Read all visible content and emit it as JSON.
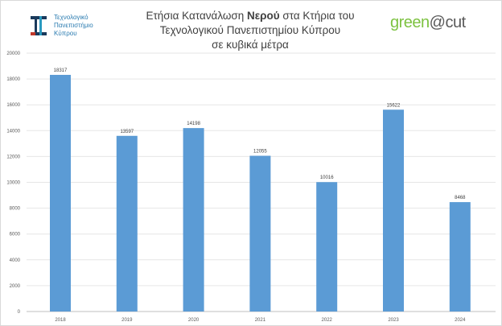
{
  "logos": {
    "left_text": [
      "Τεχνολογικό",
      "Πανεπιστήμιο",
      "Κύπρου"
    ],
    "right_green": "green",
    "right_gray": "@cut"
  },
  "chart_data": {
    "type": "bar",
    "title_lines": [
      "Ετήσια Κατανάλωση ",
      "Νερού",
      " στα Κτήρια του",
      "Τεχνολογικού Πανεπιστημίου Κύπρου",
      "σε κυβικά μέτρα"
    ],
    "categories": [
      "2018",
      "2019",
      "2020",
      "2021",
      "2022",
      "2023",
      "2024"
    ],
    "values": [
      18317,
      13597,
      14198,
      12055,
      10016,
      15622,
      8468
    ],
    "ylim": [
      0,
      20000
    ],
    "yticks": [
      0,
      2000,
      4000,
      6000,
      8000,
      10000,
      12000,
      14000,
      16000,
      18000,
      20000
    ],
    "xlabel": "",
    "ylabel": "",
    "grid": true,
    "bar_color": "#5b9bd5"
  }
}
